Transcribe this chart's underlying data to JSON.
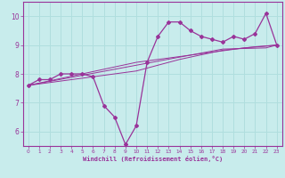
{
  "xlabel": "Windchill (Refroidissement éolien,°C)",
  "bg_color": "#c8ecec",
  "line_color": "#993399",
  "grid_color": "#b0dede",
  "xlim": [
    -0.5,
    23.5
  ],
  "ylim": [
    5.5,
    10.5
  ],
  "yticks": [
    6,
    7,
    8,
    9,
    10
  ],
  "xticks": [
    0,
    1,
    2,
    3,
    4,
    5,
    6,
    7,
    8,
    9,
    10,
    11,
    12,
    13,
    14,
    15,
    16,
    17,
    18,
    19,
    20,
    21,
    22,
    23
  ],
  "hours": [
    0,
    1,
    2,
    3,
    4,
    5,
    6,
    7,
    8,
    9,
    10,
    11,
    12,
    13,
    14,
    15,
    16,
    17,
    18,
    19,
    20,
    21,
    22,
    23
  ],
  "temp_main": [
    7.6,
    7.8,
    7.8,
    8.0,
    8.0,
    8.0,
    7.9,
    6.9,
    6.5,
    5.55,
    6.2,
    8.4,
    9.3,
    9.8,
    9.8,
    9.5,
    9.3,
    9.2,
    9.1,
    9.3,
    9.2,
    9.4,
    10.1,
    9.0
  ],
  "trend1": [
    7.6,
    7.67,
    7.74,
    7.81,
    7.88,
    7.95,
    8.02,
    8.09,
    8.16,
    8.23,
    8.3,
    8.37,
    8.44,
    8.51,
    8.58,
    8.65,
    8.72,
    8.79,
    8.86,
    8.87,
    8.88,
    8.89,
    8.9,
    9.0
  ],
  "trend2": [
    7.6,
    7.68,
    7.76,
    7.84,
    7.92,
    8.0,
    8.08,
    8.16,
    8.24,
    8.32,
    8.4,
    8.45,
    8.5,
    8.55,
    8.6,
    8.65,
    8.7,
    8.75,
    8.8,
    8.85,
    8.9,
    8.93,
    8.96,
    9.0
  ],
  "trend3": [
    7.6,
    7.65,
    7.7,
    7.75,
    7.8,
    7.85,
    7.9,
    7.95,
    8.0,
    8.05,
    8.1,
    8.2,
    8.3,
    8.4,
    8.5,
    8.58,
    8.66,
    8.74,
    8.82,
    8.86,
    8.9,
    8.94,
    8.97,
    9.0
  ]
}
